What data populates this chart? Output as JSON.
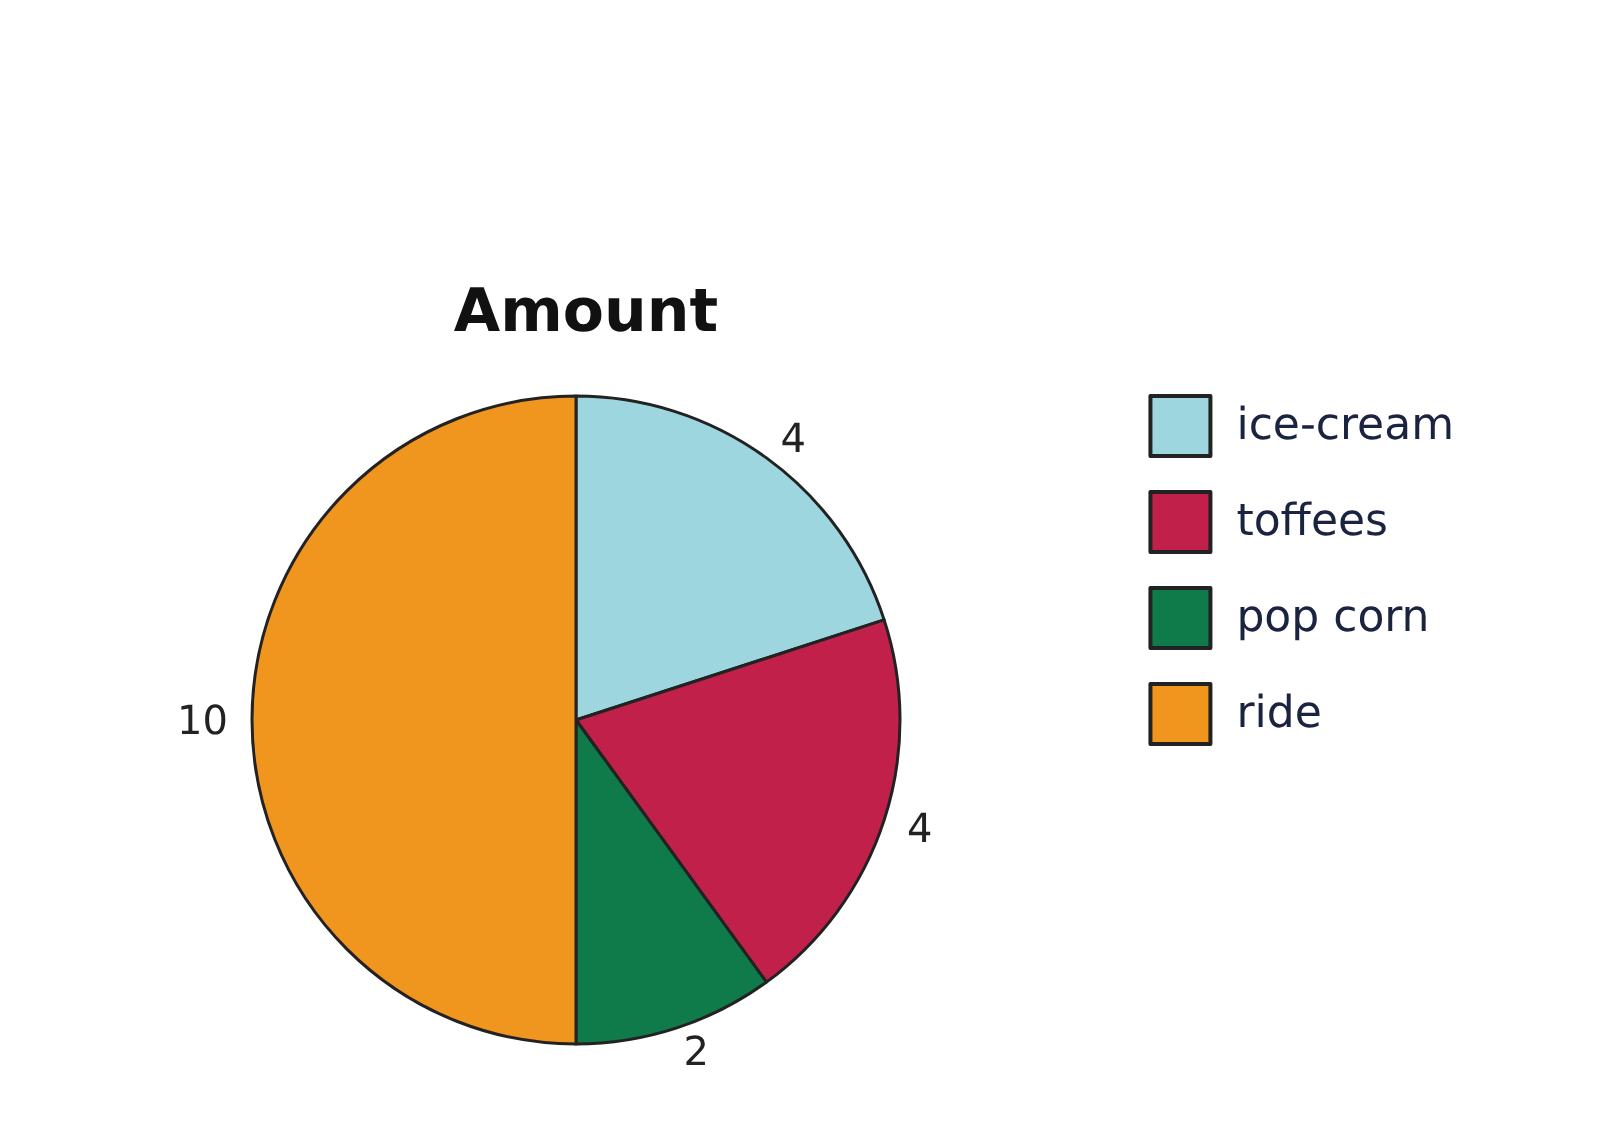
{
  "chart_data": {
    "type": "pie",
    "title": "Amount",
    "categories": [
      "ice-cream",
      "toffees",
      "pop corn",
      "ride"
    ],
    "values": [
      4,
      4,
      2,
      10
    ],
    "colors": [
      "#9dd6df",
      "#c0204a",
      "#0f7a4a",
      "#f0951e"
    ],
    "legend": "right",
    "data_labels": true
  }
}
